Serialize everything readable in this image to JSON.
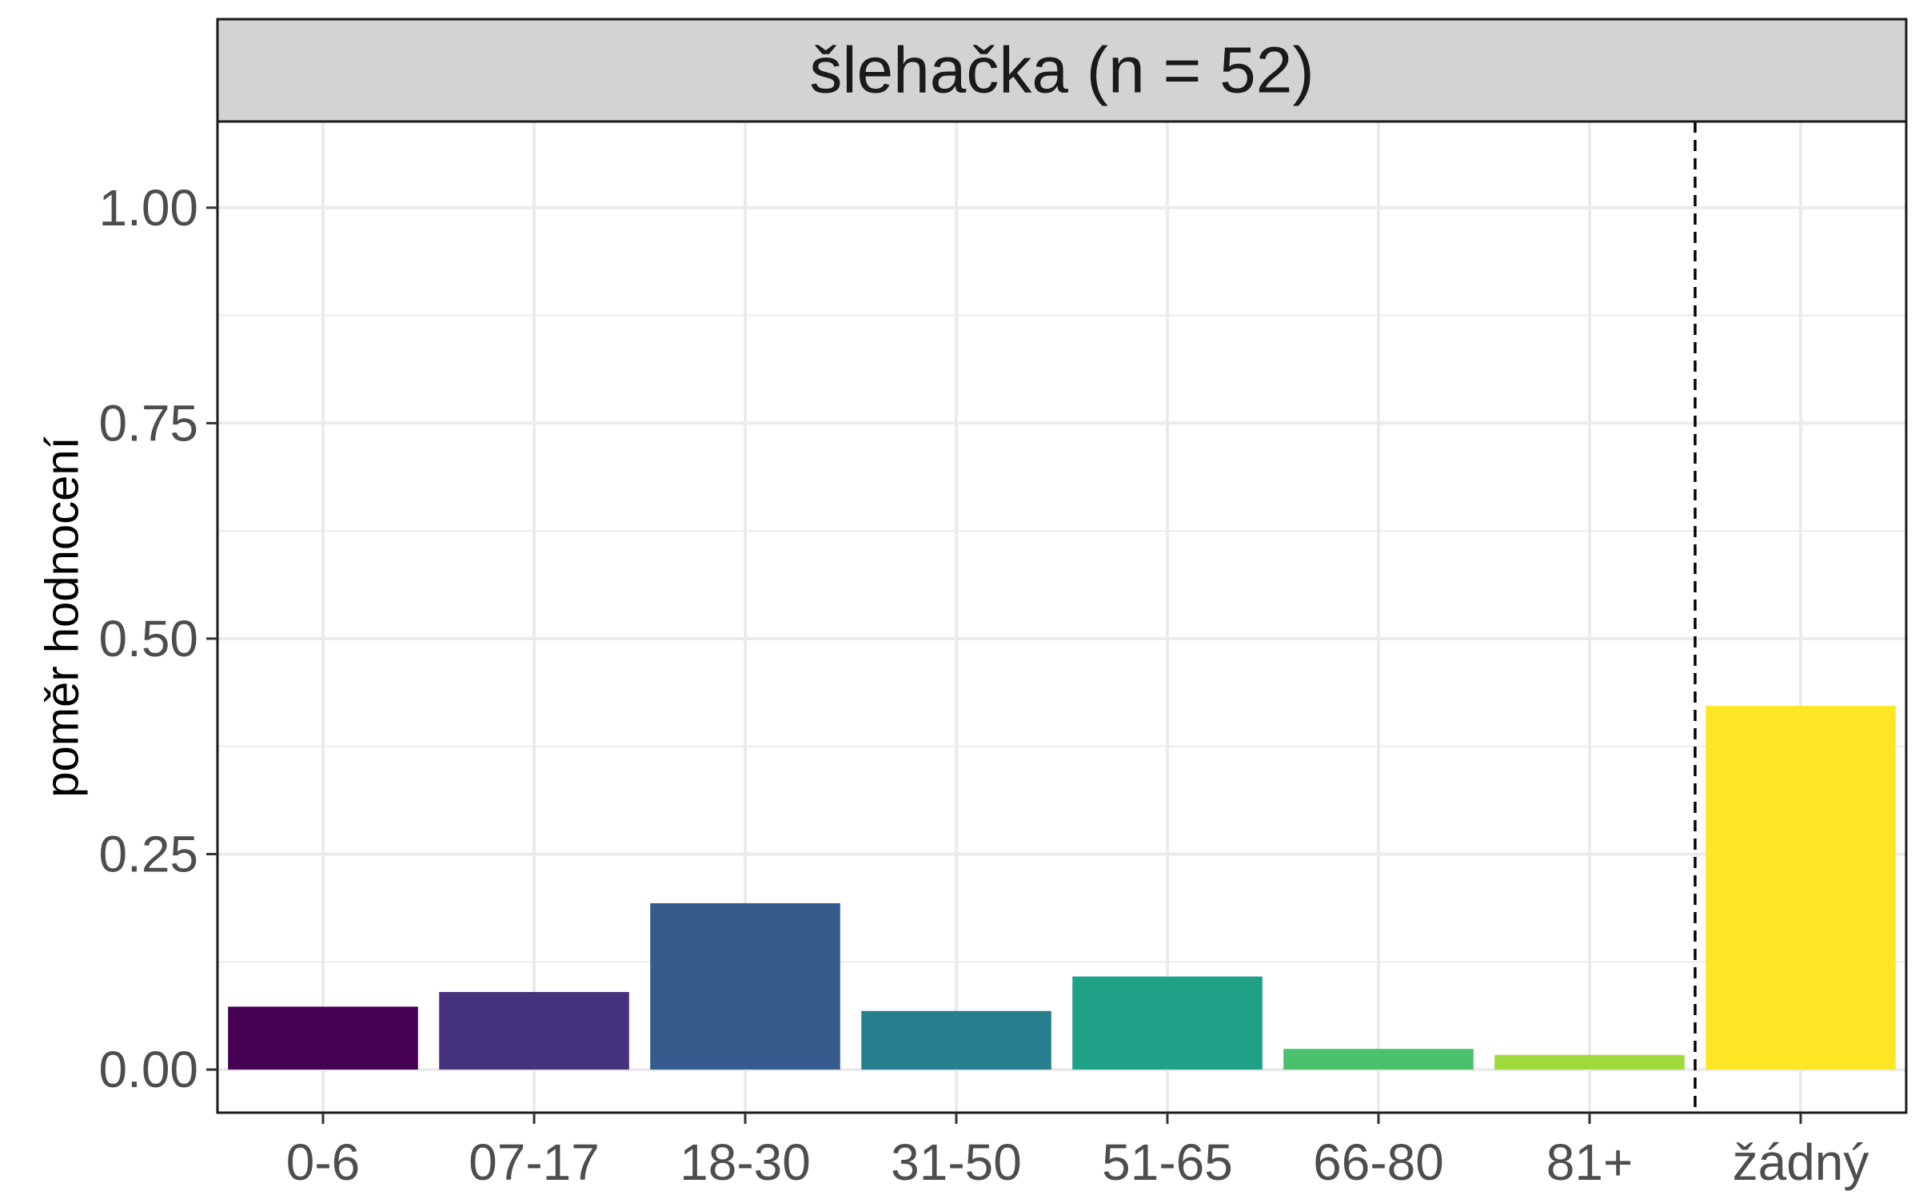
{
  "chart_data": {
    "type": "bar",
    "title": "šlehačka (n = 52)",
    "xlabel": "",
    "ylabel": "poměr hodnocení",
    "categories": [
      "0-6",
      "07-17",
      "18-30",
      "31-50",
      "51-65",
      "66-80",
      "81+",
      "žádný"
    ],
    "values": [
      0.073,
      0.09,
      0.193,
      0.068,
      0.108,
      0.024,
      0.017,
      0.422
    ],
    "colors": [
      "#440154",
      "#46337E",
      "#365C8D",
      "#277F8E",
      "#1FA187",
      "#4AC16D",
      "#9FDA3A",
      "#FDE725"
    ],
    "ylim": [
      -0.05,
      1.1
    ],
    "yticks": [
      0.0,
      0.25,
      0.5,
      0.75,
      1.0
    ],
    "ytick_labels": [
      "0.00",
      "0.25",
      "0.50",
      "0.75",
      "1.00"
    ],
    "grid": true,
    "separator_after_category": "81+",
    "separator_style": "dashed"
  }
}
